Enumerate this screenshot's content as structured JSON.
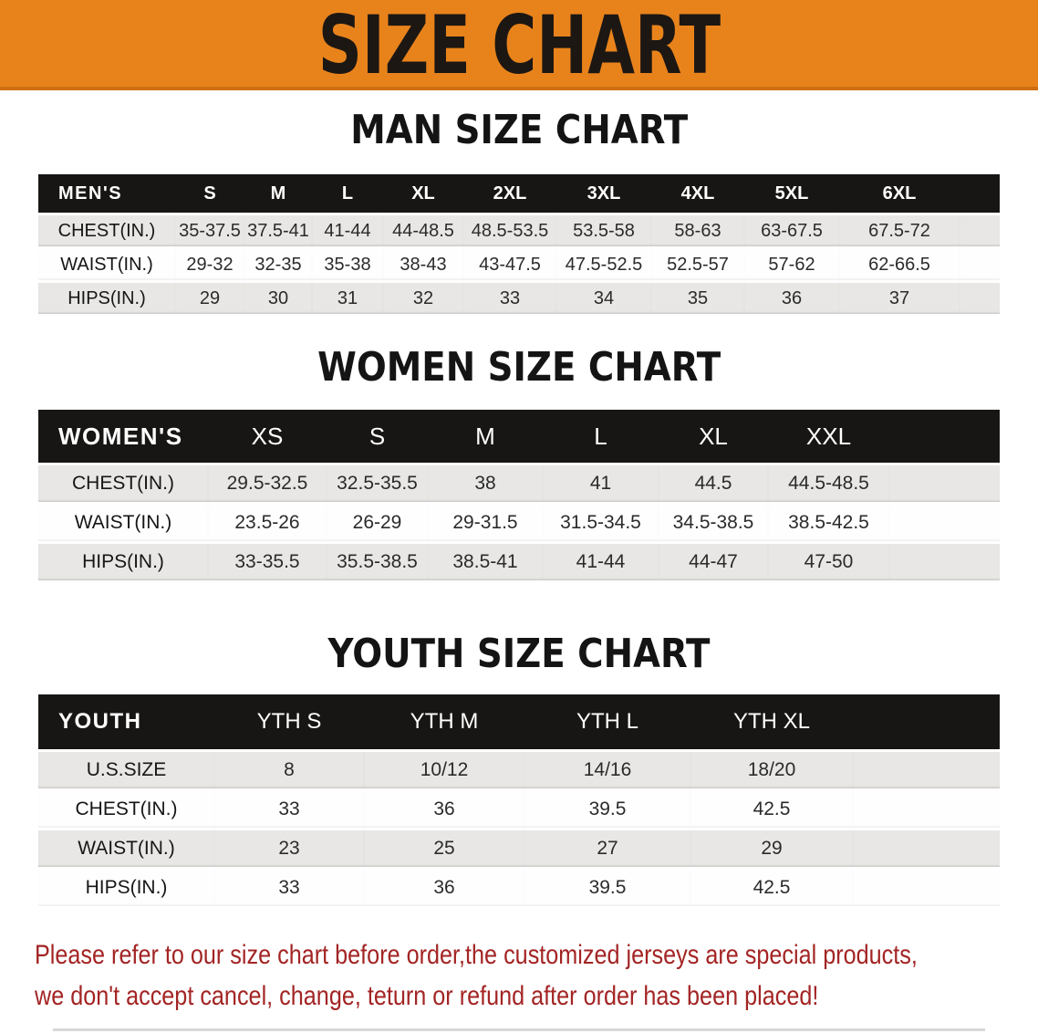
{
  "banner": {
    "title": "SIZE CHART"
  },
  "sections": [
    {
      "heading": "MAN SIZE CHART",
      "table": {
        "corner": "MEN'S",
        "columns": [
          "S",
          "M",
          "L",
          "XL",
          "2XL",
          "3XL",
          "4XL",
          "5XL",
          "6XL"
        ],
        "rows": [
          {
            "label": "CHEST(IN.)",
            "values": [
              "35-37.5",
              "37.5-41",
              "41-44",
              "44-48.5",
              "48.5-53.5",
              "53.5-58",
              "58-63",
              "63-67.5",
              "67.5-72"
            ]
          },
          {
            "label": "WAIST(IN.)",
            "values": [
              "29-32",
              "32-35",
              "35-38",
              "38-43",
              "43-47.5",
              "47.5-52.5",
              "52.5-57",
              "57-62",
              "62-66.5"
            ]
          },
          {
            "label": "HIPS(IN.)",
            "values": [
              "29",
              "30",
              "31",
              "32",
              "33",
              "34",
              "35",
              "36",
              "37"
            ]
          }
        ]
      }
    },
    {
      "heading": "WOMEN SIZE CHART",
      "table": {
        "corner": "WOMEN'S",
        "columns": [
          "XS",
          "S",
          "M",
          "L",
          "XL",
          "XXL"
        ],
        "rows": [
          {
            "label": "CHEST(IN.)",
            "values": [
              "29.5-32.5",
              "32.5-35.5",
              "38",
              "41",
              "44.5",
              "44.5-48.5"
            ]
          },
          {
            "label": "WAIST(IN.)",
            "values": [
              "23.5-26",
              "26-29",
              "29-31.5",
              "31.5-34.5",
              "34.5-38.5",
              "38.5-42.5"
            ]
          },
          {
            "label": "HIPS(IN.)",
            "values": [
              "33-35.5",
              "35.5-38.5",
              "38.5-41",
              "41-44",
              "44-47",
              "47-50"
            ]
          }
        ]
      }
    },
    {
      "heading": "YOUTH SIZE CHART",
      "table": {
        "corner": "YOUTH",
        "columns": [
          "YTH S",
          "YTH M",
          "YTH L",
          "YTH XL"
        ],
        "rows": [
          {
            "label": "U.S.SIZE",
            "values": [
              "8",
              "10/12",
              "14/16",
              "18/20"
            ]
          },
          {
            "label": "CHEST(IN.)",
            "values": [
              "33",
              "36",
              "39.5",
              "42.5"
            ]
          },
          {
            "label": "WAIST(IN.)",
            "values": [
              "23",
              "25",
              "27",
              "29"
            ]
          },
          {
            "label": "HIPS(IN.)",
            "values": [
              "33",
              "36",
              "39.5",
              "42.5"
            ]
          }
        ]
      }
    }
  ],
  "disclaimer": {
    "line1": "Please refer to our size chart before order,the customized jerseys are special products,",
    "line2": "we don't accept cancel, change, teturn or refund after order has been placed!"
  },
  "colors": {
    "banner_bg": "#E8831C",
    "banner_edge": "#CE6E10",
    "table_header_bg": "#181614",
    "stripe_gray": "#E8E7E5",
    "disclaimer_red": "#A32424"
  }
}
